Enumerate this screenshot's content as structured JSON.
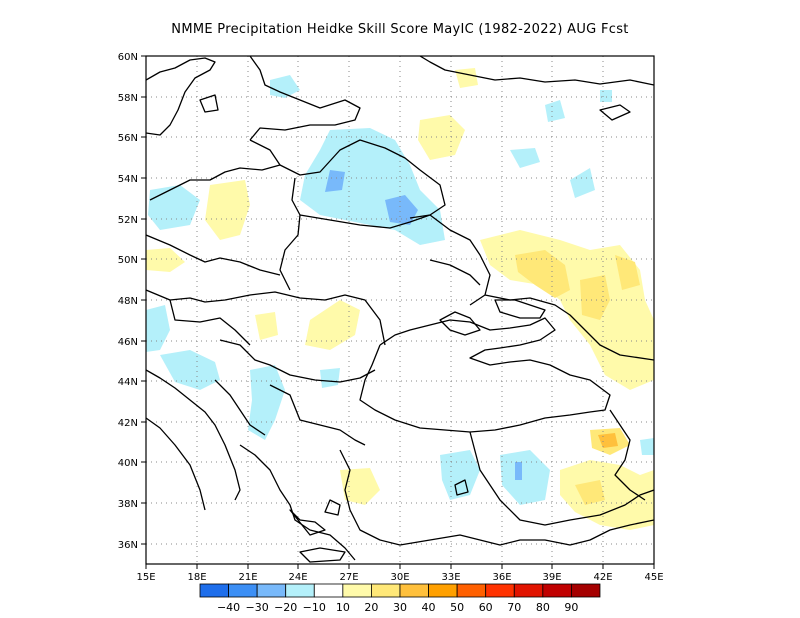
{
  "title": "NMME  Precipitation Heidke Skill Score MayIC (1982-2022) AUG Fcst",
  "map": {
    "lon_range": [
      15,
      45
    ],
    "lat_range": [
      35,
      60
    ],
    "lon_ticks": [
      "15E",
      "18E",
      "21E",
      "24E",
      "27E",
      "30E",
      "33E",
      "36E",
      "39E",
      "42E",
      "45E"
    ],
    "lat_ticks": [
      "36N",
      "38N",
      "40N",
      "42N",
      "44N",
      "46N",
      "48N",
      "50N",
      "52N",
      "54N",
      "56N",
      "58N",
      "60N"
    ],
    "grid": "dotted",
    "border_color": "#000000"
  },
  "colorbar": {
    "labels": [
      "-40",
      "-30",
      "-20",
      "-10",
      "10",
      "20",
      "30",
      "40",
      "50",
      "60",
      "70",
      "80",
      "90"
    ],
    "colors": [
      "#1e6eeb",
      "#3c8ff5",
      "#78b9fa",
      "#b4f0fa",
      "#ffffff",
      "#fffaaa",
      "#ffe878",
      "#ffc03c",
      "#ffa000",
      "#ff6000",
      "#ff3200",
      "#e11400",
      "#c00000",
      "#a50000"
    ]
  },
  "skill_regions": [
    {
      "name": "baltic-negative",
      "color": "#b4f0fa"
    },
    {
      "name": "belarus-negative",
      "color": "#b4f0fa"
    },
    {
      "name": "belarus-core",
      "color": "#78b9fa"
    },
    {
      "name": "ukraine-north-core",
      "color": "#78b9fa"
    },
    {
      "name": "russia-south-positive",
      "color": "#fffaaa"
    },
    {
      "name": "russia-south-core",
      "color": "#ffe878"
    },
    {
      "name": "caucasus-positive",
      "color": "#ffe878"
    },
    {
      "name": "caucasus-core",
      "color": "#ffc03c"
    },
    {
      "name": "balkan-negative",
      "color": "#b4f0fa"
    },
    {
      "name": "anatolia-negative",
      "color": "#b4f0fa"
    }
  ]
}
